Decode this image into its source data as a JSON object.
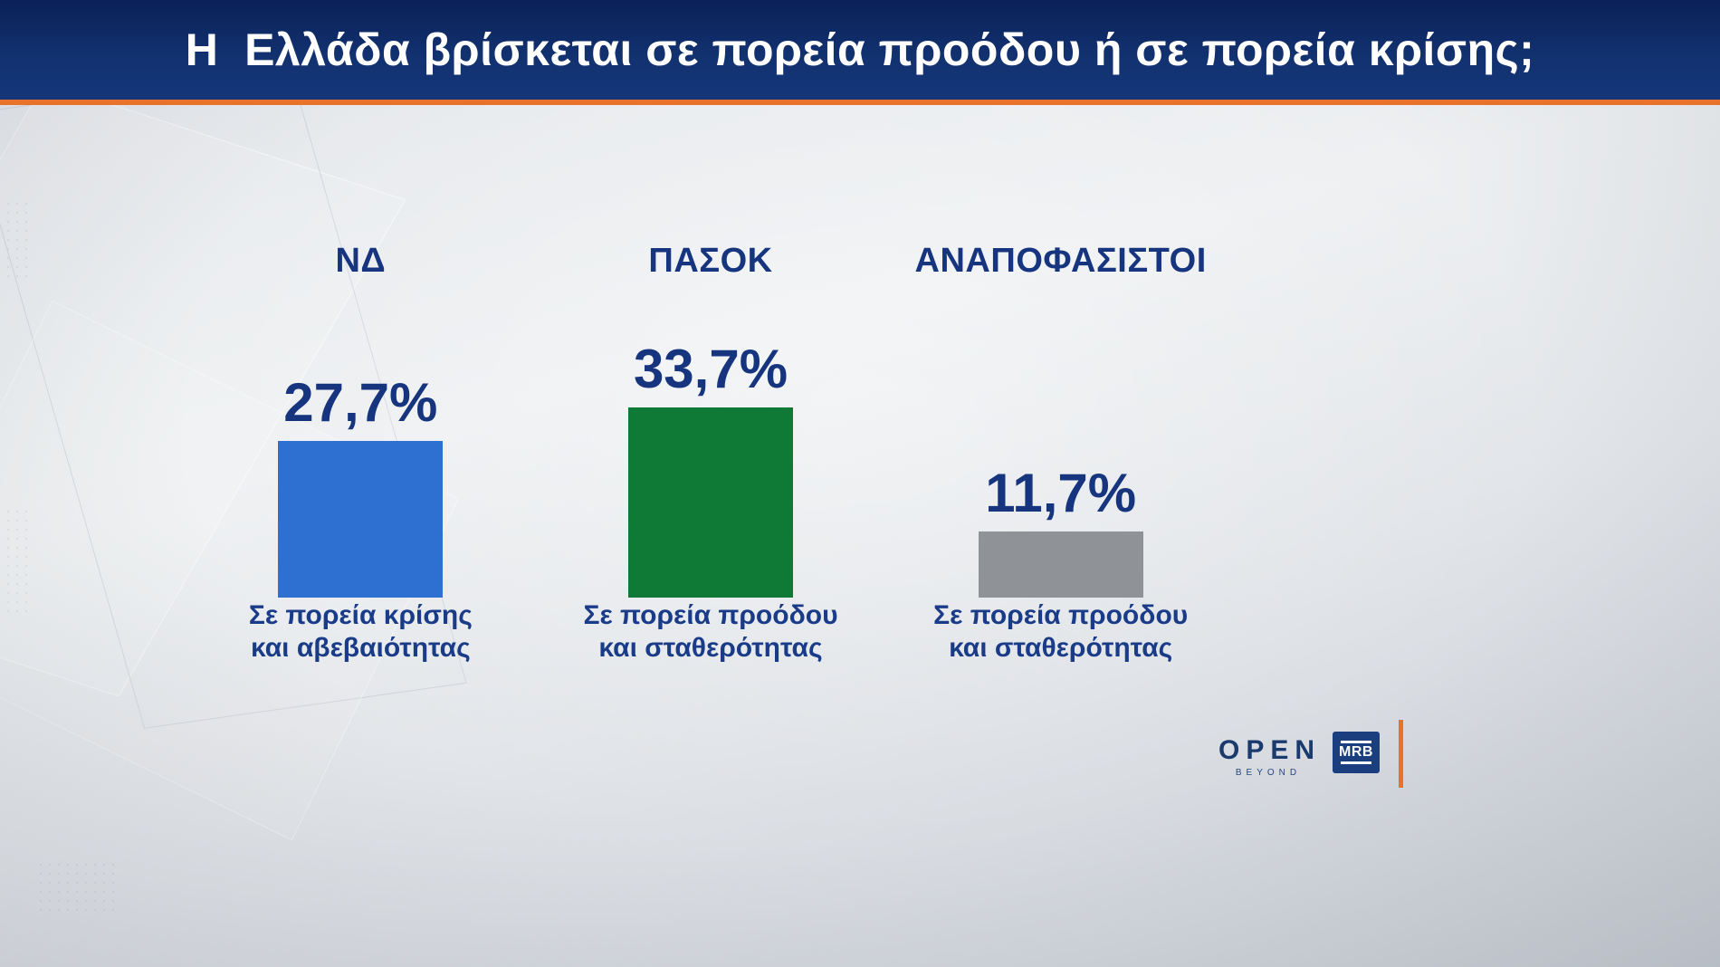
{
  "header": {
    "title": "Η  Ελλάδα βρίσκεται σε πορεία προόδου ή σε πορεία κρίσης;"
  },
  "chart_data": {
    "type": "bar",
    "title": "Η Ελλάδα βρίσκεται σε πορεία προόδου ή σε πορεία κρίσης;",
    "categories": [
      "ΝΔ",
      "ΠΑΣΟΚ",
      "ΑΝΑΠΟΦΑΣΙΣΤΟΙ"
    ],
    "values": [
      27.7,
      33.7,
      11.7
    ],
    "value_labels": [
      "27,7%",
      "33,7%",
      "11,7%"
    ],
    "bar_colors": [
      "#2e70d1",
      "#0e7a35",
      "#8f9296"
    ],
    "captions": [
      [
        "Σε πορεία κρίσης",
        "και αβεβαιότητας"
      ],
      [
        "Σε πορεία προόδου",
        "και σταθερότητας"
      ],
      [
        "Σε πορεία προόδου",
        "και σταθερότητας"
      ]
    ],
    "ylim": [
      0,
      40
    ],
    "grid": false,
    "legend": false,
    "orientation": "vertical"
  },
  "footer": {
    "channel_name": "OPEN",
    "channel_tagline": "BEYOND",
    "agency_name": "MRB"
  },
  "colors": {
    "header_band": "#12316f",
    "accent_orange": "#e8722a",
    "text_navy": "#16357e",
    "bar_blue": "#2e70d1",
    "bar_green": "#0e7a35",
    "bar_gray": "#8f9296"
  }
}
